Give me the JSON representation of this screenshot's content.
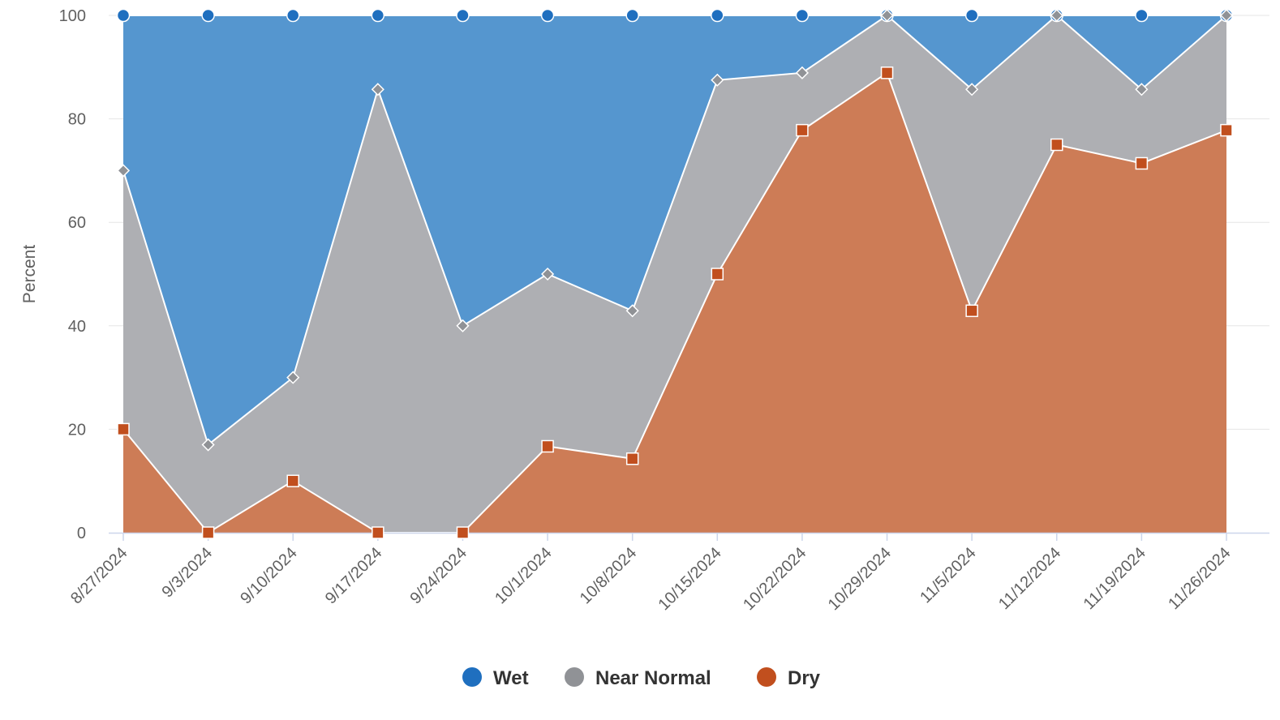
{
  "chart_data": {
    "type": "area",
    "stacking": "percent",
    "title": "",
    "xlabel": "",
    "ylabel": "Percent",
    "ylim": [
      0,
      100
    ],
    "yticks": [
      "0",
      "20",
      "40",
      "60",
      "80",
      "100"
    ],
    "grid": true,
    "legend_position": "bottom-center",
    "categories": [
      "8/27/2024",
      "9/3/2024",
      "9/10/2024",
      "9/17/2024",
      "9/24/2024",
      "10/1/2024",
      "10/8/2024",
      "10/15/2024",
      "10/22/2024",
      "10/29/2024",
      "11/5/2024",
      "11/12/2024",
      "11/19/2024",
      "11/26/2024"
    ],
    "series": [
      {
        "name": "Wet",
        "color": "#1f6fbf",
        "area_color": "#5596cf",
        "marker": "circle",
        "values": [
          30,
          83,
          70,
          14.3,
          60,
          50,
          57.1,
          12.5,
          11.1,
          0,
          14.3,
          0,
          14.3,
          0
        ]
      },
      {
        "name": "Near Normal",
        "color": "#909296",
        "area_color": "#aeafb3",
        "marker": "diamond",
        "values": [
          50,
          17,
          20,
          85.7,
          40,
          33.3,
          28.6,
          37.5,
          11.1,
          11.1,
          42.8,
          25,
          14.3,
          22.2
        ]
      },
      {
        "name": "Dry",
        "color": "#c14f1e",
        "area_color": "#cd7c56",
        "marker": "square",
        "values": [
          20,
          0,
          10,
          0,
          0,
          16.7,
          14.3,
          50,
          77.8,
          88.9,
          42.9,
          75,
          71.4,
          77.8
        ]
      }
    ]
  }
}
